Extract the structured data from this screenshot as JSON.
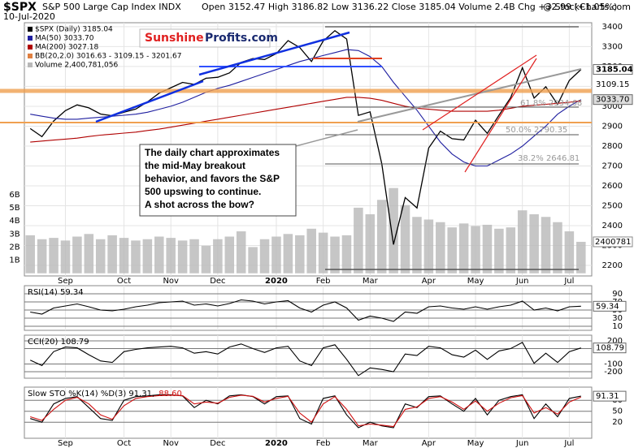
{
  "header": {
    "symbol": "$SPX",
    "name": "S&P 500 Large Cap Index INDX",
    "date": "10-Jul-2020",
    "quote": "Open 3152.47 High 3186.82 Low 3136.22 Close 3185.04 Volume 2.4B Chg +32.99 (+1.05%)",
    "source": "@ StockCharts.com"
  },
  "logo": {
    "part1": "Sunshine",
    "part2": "Profits.com"
  },
  "annotation": [
    "The daily chart approximates",
    "the mid-May breakout",
    "behavior, and favors the S&P",
    "500 upswing to continue.",
    "A shot across the bow?"
  ],
  "fib_labels": [
    "61.8% 2934.68",
    "50.0% 2790.35",
    "38.2% 2646.81"
  ],
  "chart_data": [
    {
      "type": "line",
      "categories": [
        null,
        null,
        null,
        "Sep",
        null,
        null,
        null,
        null,
        "Oct",
        null,
        null,
        null,
        "Nov",
        null,
        null,
        null,
        "Dec",
        null,
        null,
        null,
        null,
        "2020",
        null,
        null,
        null,
        "Feb",
        null,
        null,
        null,
        "Mar",
        null,
        null,
        null,
        null,
        "Apr",
        null,
        null,
        null,
        "May",
        null,
        null,
        null,
        "Jun",
        null,
        null,
        null,
        "Jul",
        null
      ],
      "series": [
        {
          "name": "$SPX (Daily) 3185.04",
          "color": "#000000",
          "values": [
            2888,
            2847,
            2926,
            2978,
            3007,
            2992,
            2961,
            2952,
            2970,
            2986,
            3022,
            3066,
            3093,
            3120,
            3110,
            3141,
            3146,
            3168,
            3221,
            3240,
            3235,
            3265,
            3330,
            3295,
            3225,
            3328,
            3380,
            3338,
            2954,
            2972,
            2711,
            2305,
            2541,
            2489,
            2790,
            2875,
            2837,
            2831,
            2930,
            2864,
            2955,
            3044,
            3194,
            3041,
            3098,
            3009,
            3130,
            3185.04
          ]
        },
        {
          "name": "MA(50) 3033.70",
          "color": "#1f1fa0",
          "values": [
            2960,
            2950,
            2940,
            2935,
            2935,
            2940,
            2945,
            2950,
            2955,
            2960,
            2970,
            2985,
            3000,
            3020,
            3045,
            3070,
            3090,
            3105,
            3125,
            3145,
            3165,
            3185,
            3205,
            3225,
            3240,
            3255,
            3270,
            3285,
            3280,
            3250,
            3200,
            3120,
            3050,
            2980,
            2900,
            2820,
            2760,
            2720,
            2700,
            2700,
            2730,
            2760,
            2800,
            2850,
            2900,
            2960,
            3000,
            3033.7
          ]
        },
        {
          "name": "MA(200) 3027.18",
          "color": "#b00000",
          "values": [
            2820,
            2825,
            2830,
            2835,
            2840,
            2848,
            2855,
            2860,
            2865,
            2870,
            2878,
            2885,
            2895,
            2905,
            2915,
            2925,
            2935,
            2945,
            2955,
            2965,
            2975,
            2985,
            2995,
            3005,
            3015,
            3025,
            3035,
            3045,
            3045,
            3040,
            3030,
            3015,
            3000,
            2990,
            2985,
            2980,
            2975,
            2975,
            2975,
            2975,
            2980,
            2990,
            3000,
            3005,
            3010,
            3015,
            3020,
            3027.18
          ]
        }
      ],
      "bb_label": "BB(20,2.0) 3016.63 - 3109.15 - 3201.67",
      "ylim": [
        2147,
        3420
      ],
      "yticks": [
        2200,
        2300,
        2400,
        2500,
        2600,
        2700,
        2800,
        2900,
        3000,
        3100,
        3200,
        3300,
        3400
      ],
      "price_labels": [
        3185.04,
        3109.15,
        {
          "value": 3033.7,
          "label": "3033.70"
        }
      ],
      "grid": true,
      "volume": {
        "name": "Volume 2,400,781,056",
        "color": "#b8b8b8",
        "values": [
          2.9,
          2.6,
          2.7,
          2.5,
          2.8,
          3.0,
          2.6,
          2.9,
          2.7,
          2.5,
          2.6,
          2.8,
          2.7,
          2.5,
          2.6,
          2.1,
          2.6,
          2.8,
          3.2,
          2.0,
          2.6,
          2.8,
          3.0,
          2.9,
          3.4,
          3.1,
          2.8,
          2.9,
          5.0,
          4.5,
          5.6,
          6.5,
          5.2,
          4.3,
          4.1,
          3.9,
          3.5,
          3.8,
          3.6,
          3.7,
          3.4,
          3.5,
          4.8,
          4.5,
          4.3,
          3.9,
          3.2,
          2.4
        ],
        "ylim": [
          -0.2,
          19.1
        ],
        "yticks": [
          {
            "value": 1,
            "label": "1B"
          },
          {
            "value": 2,
            "label": "2B"
          },
          {
            "value": 3,
            "label": "3B"
          },
          {
            "value": 4,
            "label": "4B"
          },
          {
            "value": 5,
            "label": "5B"
          },
          {
            "value": 6,
            "label": "6B"
          }
        ],
        "last_label": 2400781
      }
    },
    {
      "type": "line",
      "series": [
        {
          "name": "RSI(14) 59.34",
          "color": "#000000",
          "values": [
            45,
            40,
            55,
            60,
            65,
            58,
            50,
            48,
            52,
            58,
            62,
            68,
            70,
            72,
            62,
            65,
            60,
            66,
            75,
            72,
            65,
            70,
            73,
            55,
            45,
            62,
            70,
            55,
            25,
            35,
            30,
            22,
            45,
            42,
            58,
            60,
            55,
            52,
            58,
            52,
            58,
            62,
            72,
            50,
            55,
            48,
            58,
            59.34
          ]
        }
      ],
      "ylim": [
        0,
        110
      ],
      "yticks": [
        10,
        30,
        50,
        70,
        90
      ],
      "grid": true,
      "last_label": 59.34
    },
    {
      "type": "line",
      "series": [
        {
          "name": "CCI(20) 108.79",
          "color": "#000000",
          "values": [
            -50,
            -120,
            60,
            120,
            110,
            20,
            -60,
            -80,
            60,
            90,
            110,
            120,
            130,
            110,
            40,
            60,
            30,
            120,
            160,
            100,
            50,
            110,
            130,
            -60,
            -120,
            110,
            150,
            -40,
            -250,
            -150,
            -170,
            -200,
            30,
            10,
            130,
            110,
            20,
            -10,
            80,
            -40,
            70,
            100,
            180,
            -90,
            40,
            -80,
            60,
            108.79
          ]
        }
      ],
      "ylim": [
        -284,
        274
      ],
      "yticks": [
        -200,
        -100,
        100,
        200
      ],
      "grid": true,
      "last_label": 108.79
    },
    {
      "type": "line",
      "series": [
        {
          "name": "Slow STO %K(14) %D(3) 91.31,",
          "color": "#000000",
          "values": [
            30,
            20,
            70,
            85,
            90,
            60,
            30,
            25,
            80,
            90,
            92,
            95,
            95,
            92,
            60,
            80,
            70,
            92,
            95,
            90,
            70,
            90,
            92,
            30,
            15,
            85,
            92,
            40,
            5,
            20,
            10,
            5,
            70,
            60,
            90,
            92,
            70,
            50,
            85,
            40,
            80,
            90,
            95,
            30,
            70,
            35,
            85,
            91.31
          ]
        },
        {
          "name": "88.60",
          "color": "#d01010",
          "values": [
            35,
            25,
            55,
            80,
            88,
            70,
            40,
            28,
            65,
            85,
            90,
            93,
            94,
            93,
            70,
            75,
            72,
            88,
            94,
            91,
            75,
            85,
            91,
            45,
            20,
            70,
            90,
            55,
            10,
            15,
            12,
            8,
            55,
            62,
            85,
            90,
            75,
            55,
            78,
            50,
            72,
            87,
            93,
            45,
            60,
            42,
            75,
            88.6
          ]
        }
      ],
      "ylim": [
        -24,
        116
      ],
      "yticks": [
        20,
        50,
        80
      ],
      "grid": true,
      "last_label": 91.31
    }
  ]
}
